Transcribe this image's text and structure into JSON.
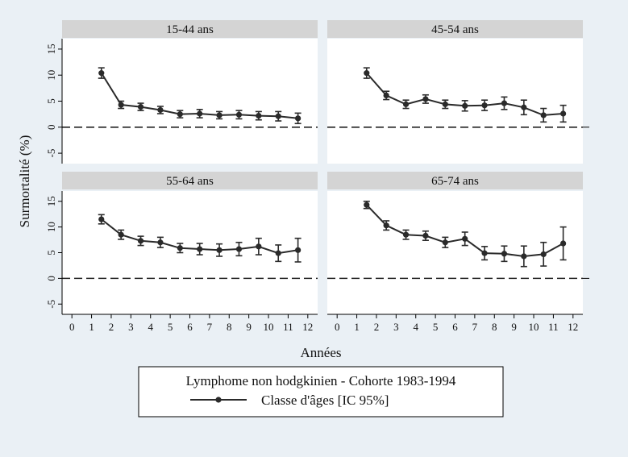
{
  "chart_data": {
    "type": "line",
    "xlabel": "Années",
    "ylabel": "Surmortalité (%)",
    "xlim": [
      -0.5,
      12.5
    ],
    "ylim": [
      -7,
      17
    ],
    "x_ticks": [
      0,
      1,
      2,
      3,
      4,
      5,
      6,
      7,
      8,
      9,
      10,
      11,
      12
    ],
    "y_ticks": [
      -5,
      0,
      5,
      10,
      15
    ],
    "reference_line": {
      "y": 0,
      "style": "dashed"
    },
    "legend": {
      "title": "Lymphome non hodgkinien - Cohorte 1983-1994",
      "entry": "Classe d'âges [IC 95%]",
      "placement": "bottom"
    },
    "panels": [
      {
        "title": "15-44 ans",
        "x": [
          1.5,
          2.5,
          3.5,
          4.5,
          5.5,
          6.5,
          7.5,
          8.5,
          9.5,
          10.5,
          11.5
        ],
        "y": [
          10.4,
          4.3,
          3.9,
          3.3,
          2.5,
          2.6,
          2.3,
          2.4,
          2.2,
          2.1,
          1.7
        ],
        "lower": [
          9.4,
          3.6,
          3.2,
          2.6,
          1.8,
          1.8,
          1.6,
          1.6,
          1.4,
          1.2,
          0.7
        ],
        "upper": [
          11.4,
          5.0,
          4.6,
          4.0,
          3.2,
          3.4,
          3.0,
          3.2,
          3.0,
          3.0,
          2.7
        ]
      },
      {
        "title": "45-54 ans",
        "x": [
          1.5,
          2.5,
          3.5,
          4.5,
          5.5,
          6.5,
          7.5,
          8.5,
          9.5,
          10.5,
          11.5
        ],
        "y": [
          10.4,
          6.1,
          4.4,
          5.4,
          4.4,
          4.1,
          4.2,
          4.6,
          3.8,
          2.3,
          2.6
        ],
        "lower": [
          9.4,
          5.3,
          3.6,
          4.6,
          3.6,
          3.1,
          3.2,
          3.4,
          2.4,
          1.0,
          1.0
        ],
        "upper": [
          11.4,
          6.9,
          5.2,
          6.2,
          5.2,
          5.1,
          5.2,
          5.8,
          5.2,
          3.6,
          4.2
        ]
      },
      {
        "title": "55-64 ans",
        "x": [
          1.5,
          2.5,
          3.5,
          4.5,
          5.5,
          6.5,
          7.5,
          8.5,
          9.5,
          10.5,
          11.5
        ],
        "y": [
          11.5,
          8.5,
          7.3,
          7.0,
          5.9,
          5.7,
          5.5,
          5.7,
          6.2,
          4.9,
          5.5
        ],
        "lower": [
          10.6,
          7.6,
          6.4,
          6.0,
          5.0,
          4.6,
          4.3,
          4.4,
          4.6,
          3.3,
          3.2
        ],
        "upper": [
          12.4,
          9.4,
          8.2,
          8.0,
          6.8,
          6.8,
          6.7,
          7.0,
          7.8,
          6.5,
          7.8
        ]
      },
      {
        "title": "65-74 ans",
        "x": [
          1.5,
          2.5,
          3.5,
          4.5,
          5.5,
          6.5,
          7.5,
          8.5,
          9.5,
          10.5,
          11.5
        ],
        "y": [
          14.3,
          10.3,
          8.5,
          8.3,
          7.0,
          7.7,
          4.9,
          4.8,
          4.3,
          4.7,
          6.8
        ],
        "lower": [
          13.6,
          9.4,
          7.6,
          7.4,
          6.0,
          6.4,
          3.6,
          3.3,
          2.3,
          2.4,
          3.6
        ],
        "upper": [
          15.0,
          11.2,
          9.4,
          9.2,
          8.0,
          9.0,
          6.2,
          6.3,
          6.3,
          7.0,
          10.0
        ]
      }
    ],
    "colors": {
      "line": "#2a2a2a",
      "strip": "#d4d4d4",
      "panel": "#ffffff",
      "background": "#eaf0f5"
    }
  }
}
